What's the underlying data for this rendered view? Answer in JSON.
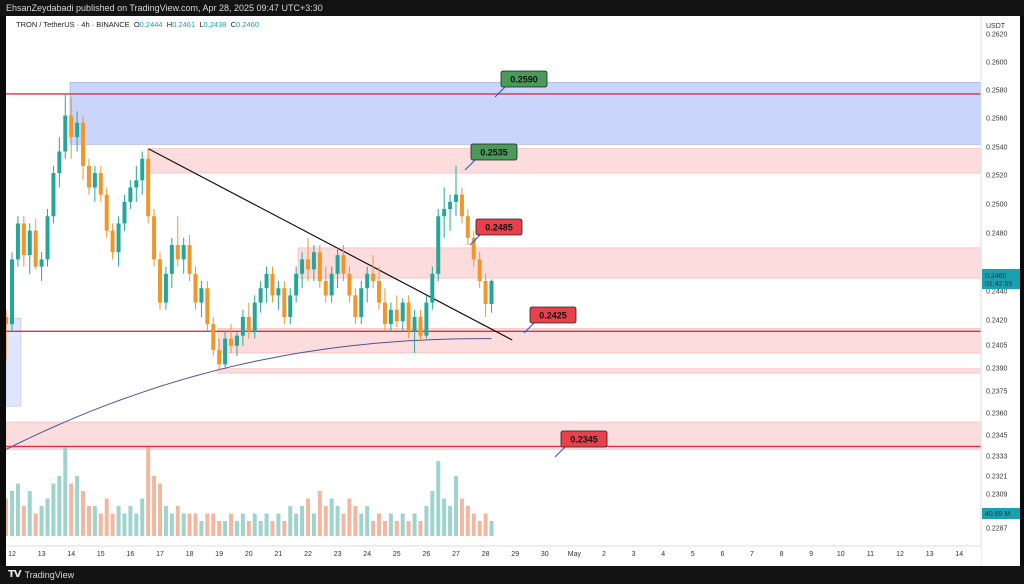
{
  "header": {
    "publisher_line": "EhsanZeydabadi published on TradingView.com, Apr 28, 2025 09:47 UTC+3:30"
  },
  "legend": {
    "symbol": "TRON / TetherUS · 4h · BINANCE",
    "o": "O",
    "o_val": "0.2444",
    "h": "H",
    "h_val": "0.2461",
    "l": "L",
    "l_val": "0.2438",
    "c": "C",
    "c_val": "0.2460"
  },
  "footer": {
    "brand": "TradingView"
  },
  "colors": {
    "bull": "#26a69a",
    "bear": "#f0962a",
    "red_line": "#e0303a",
    "green_label": "#4a9a5a",
    "red_label": "#e8414b",
    "supply_zone": "#c9d5fb",
    "pink_zone": "#fcdcdc",
    "ma": "#4b5591"
  },
  "chart_data": {
    "type": "candlestick",
    "symbol": "TRON / TetherUS",
    "timeframe": "4h",
    "exchange": "BINANCE",
    "y_axis_unit": "USDT",
    "ylim": [
      0.228,
      0.264
    ],
    "y_ticks": [
      "0.2620",
      "0.2600",
      "0.2580",
      "0.2560",
      "0.2540",
      "0.2520",
      "0.2500",
      "0.2480",
      "0.2460",
      "0.2440",
      "0.2420",
      "0.2405",
      "0.2390",
      "0.2375",
      "0.2360",
      "0.2345",
      "0.2333",
      "0.2321",
      "0.2309",
      "0.2298",
      "0.2287"
    ],
    "x_ticks": [
      "12",
      "13",
      "14",
      "15",
      "16",
      "17",
      "18",
      "19",
      "20",
      "21",
      "22",
      "23",
      "24",
      "25",
      "26",
      "27",
      "28",
      "29",
      "30",
      "May",
      "2",
      "3",
      "4",
      "5",
      "6",
      "7",
      "8",
      "9",
      "10",
      "11",
      "12",
      "13",
      "14"
    ],
    "current_price": "0.2460",
    "countdown": "01:42:59",
    "volume_tag": "40.69 M",
    "key_levels": [
      {
        "price": 0.259,
        "label": "0.2590",
        "color": "green"
      },
      {
        "price": 0.2535,
        "label": "0.2535",
        "color": "green"
      },
      {
        "price": 0.2485,
        "label": "0.2485",
        "color": "red"
      },
      {
        "price": 0.2425,
        "label": "0.2425",
        "color": "red"
      },
      {
        "price": 0.2345,
        "label": "0.2345",
        "color": "red"
      }
    ],
    "horizontal_lines": [
      0.259,
      0.2425,
      0.2345
    ],
    "zones": [
      {
        "from": 0.2555,
        "to": 0.2598,
        "kind": "supply"
      },
      {
        "from": 0.2535,
        "to": 0.2552,
        "kind": "pink"
      },
      {
        "from": 0.2462,
        "to": 0.2483,
        "kind": "pink"
      },
      {
        "from": 0.241,
        "to": 0.2427,
        "kind": "pink"
      },
      {
        "from": 0.2396,
        "to": 0.2399,
        "kind": "pink"
      },
      {
        "from": 0.2343,
        "to": 0.2362,
        "kind": "pink"
      }
    ],
    "trendline": {
      "from": [
        16.6,
        0.2552
      ],
      "to": [
        28.9,
        0.2419
      ]
    },
    "candles": [
      [
        11.8,
        0.2435,
        0.244,
        0.2405,
        0.243
      ],
      [
        12.0,
        0.243,
        0.248,
        0.2425,
        0.2475
      ],
      [
        12.2,
        0.2475,
        0.2505,
        0.247,
        0.25
      ],
      [
        12.4,
        0.25,
        0.2505,
        0.247,
        0.2478
      ],
      [
        12.6,
        0.2478,
        0.25,
        0.2465,
        0.2495
      ],
      [
        12.8,
        0.2495,
        0.2503,
        0.2468,
        0.247
      ],
      [
        13.0,
        0.247,
        0.248,
        0.246,
        0.2475
      ],
      [
        13.2,
        0.2475,
        0.251,
        0.247,
        0.2505
      ],
      [
        13.4,
        0.2505,
        0.254,
        0.25,
        0.2535
      ],
      [
        13.6,
        0.2535,
        0.256,
        0.2525,
        0.255
      ],
      [
        13.8,
        0.255,
        0.259,
        0.2545,
        0.2575
      ],
      [
        14.0,
        0.2575,
        0.2588,
        0.2545,
        0.256
      ],
      [
        14.2,
        0.256,
        0.2578,
        0.255,
        0.257
      ],
      [
        14.4,
        0.257,
        0.2575,
        0.253,
        0.254
      ],
      [
        14.6,
        0.254,
        0.2545,
        0.252,
        0.2525
      ],
      [
        14.8,
        0.2525,
        0.254,
        0.2515,
        0.2535
      ],
      [
        15.0,
        0.2535,
        0.254,
        0.2515,
        0.252
      ],
      [
        15.2,
        0.252,
        0.2525,
        0.249,
        0.2495
      ],
      [
        15.4,
        0.2495,
        0.25,
        0.2475,
        0.248
      ],
      [
        15.6,
        0.248,
        0.2505,
        0.247,
        0.25
      ],
      [
        15.8,
        0.25,
        0.252,
        0.2495,
        0.2515
      ],
      [
        16.0,
        0.2515,
        0.253,
        0.251,
        0.2525
      ],
      [
        16.2,
        0.2525,
        0.254,
        0.2515,
        0.253
      ],
      [
        16.4,
        0.253,
        0.255,
        0.252,
        0.2545
      ],
      [
        16.6,
        0.2545,
        0.2552,
        0.25,
        0.2505
      ],
      [
        16.8,
        0.2505,
        0.251,
        0.247,
        0.2475
      ],
      [
        17.0,
        0.2475,
        0.248,
        0.244,
        0.2445
      ],
      [
        17.2,
        0.2445,
        0.247,
        0.244,
        0.2465
      ],
      [
        17.4,
        0.2465,
        0.249,
        0.2455,
        0.2485
      ],
      [
        17.6,
        0.2485,
        0.2505,
        0.247,
        0.2475
      ],
      [
        17.8,
        0.2475,
        0.249,
        0.2465,
        0.2485
      ],
      [
        18.0,
        0.2485,
        0.2492,
        0.246,
        0.2465
      ],
      [
        18.2,
        0.2465,
        0.247,
        0.244,
        0.2445
      ],
      [
        18.4,
        0.2445,
        0.246,
        0.2435,
        0.2455
      ],
      [
        18.6,
        0.2455,
        0.246,
        0.2425,
        0.243
      ],
      [
        18.8,
        0.243,
        0.2435,
        0.2408,
        0.2412
      ],
      [
        19.0,
        0.2412,
        0.242,
        0.2398,
        0.2402
      ],
      [
        19.2,
        0.2402,
        0.2425,
        0.24,
        0.242
      ],
      [
        19.4,
        0.242,
        0.243,
        0.241,
        0.2415
      ],
      [
        19.6,
        0.2415,
        0.2425,
        0.2408,
        0.2422
      ],
      [
        19.8,
        0.2422,
        0.244,
        0.2415,
        0.2435
      ],
      [
        20.0,
        0.2435,
        0.2445,
        0.242,
        0.2425
      ],
      [
        20.2,
        0.2425,
        0.245,
        0.242,
        0.2445
      ],
      [
        20.4,
        0.2445,
        0.246,
        0.2438,
        0.2455
      ],
      [
        20.6,
        0.2455,
        0.247,
        0.2445,
        0.2465
      ],
      [
        20.8,
        0.2465,
        0.247,
        0.2445,
        0.245
      ],
      [
        21.0,
        0.245,
        0.246,
        0.244,
        0.2455
      ],
      [
        21.2,
        0.2455,
        0.246,
        0.243,
        0.2435
      ],
      [
        21.4,
        0.2435,
        0.2455,
        0.243,
        0.245
      ],
      [
        21.6,
        0.245,
        0.247,
        0.2445,
        0.2465
      ],
      [
        21.8,
        0.2465,
        0.248,
        0.2455,
        0.2475
      ],
      [
        22.0,
        0.2475,
        0.249,
        0.246,
        0.2468
      ],
      [
        22.2,
        0.2468,
        0.2485,
        0.246,
        0.248
      ],
      [
        22.4,
        0.248,
        0.2485,
        0.2455,
        0.246
      ],
      [
        22.6,
        0.246,
        0.247,
        0.2445,
        0.245
      ],
      [
        22.8,
        0.245,
        0.247,
        0.2445,
        0.2465
      ],
      [
        23.0,
        0.2465,
        0.2483,
        0.2455,
        0.2478
      ],
      [
        23.2,
        0.2478,
        0.2485,
        0.246,
        0.2465
      ],
      [
        23.4,
        0.2465,
        0.247,
        0.2445,
        0.245
      ],
      [
        23.6,
        0.245,
        0.2455,
        0.243,
        0.2435
      ],
      [
        23.8,
        0.2435,
        0.246,
        0.243,
        0.2455
      ],
      [
        24.0,
        0.2455,
        0.247,
        0.2445,
        0.2465
      ],
      [
        24.2,
        0.2465,
        0.2478,
        0.2455,
        0.246
      ],
      [
        24.4,
        0.246,
        0.247,
        0.244,
        0.2445
      ],
      [
        24.6,
        0.2445,
        0.2455,
        0.2425,
        0.243
      ],
      [
        24.8,
        0.243,
        0.2445,
        0.2425,
        0.244
      ],
      [
        25.0,
        0.244,
        0.245,
        0.2428,
        0.2432
      ],
      [
        25.2,
        0.2432,
        0.2448,
        0.2425,
        0.2445
      ],
      [
        25.4,
        0.2445,
        0.245,
        0.242,
        0.2425
      ],
      [
        25.6,
        0.2425,
        0.244,
        0.241,
        0.2435
      ],
      [
        25.8,
        0.2435,
        0.244,
        0.2418,
        0.2422
      ],
      [
        26.0,
        0.2422,
        0.245,
        0.242,
        0.2445
      ],
      [
        26.2,
        0.2445,
        0.247,
        0.244,
        0.2465
      ],
      [
        26.4,
        0.2465,
        0.251,
        0.246,
        0.2505
      ],
      [
        26.6,
        0.2505,
        0.2525,
        0.249,
        0.251
      ],
      [
        26.8,
        0.251,
        0.252,
        0.2495,
        0.2515
      ],
      [
        27.0,
        0.2515,
        0.254,
        0.2505,
        0.252
      ],
      [
        27.2,
        0.252,
        0.2525,
        0.25,
        0.2505
      ],
      [
        27.4,
        0.2505,
        0.251,
        0.2485,
        0.249
      ],
      [
        27.6,
        0.249,
        0.2495,
        0.247,
        0.2475
      ],
      [
        27.8,
        0.2475,
        0.248,
        0.2455,
        0.246
      ],
      [
        28.0,
        0.246,
        0.2465,
        0.2435,
        0.2444
      ],
      [
        28.2,
        0.2444,
        0.2461,
        0.2438,
        0.246
      ]
    ],
    "volumes": [
      [
        11.8,
        5
      ],
      [
        12.0,
        6
      ],
      [
        12.2,
        7
      ],
      [
        12.4,
        4
      ],
      [
        12.6,
        6
      ],
      [
        12.8,
        3
      ],
      [
        13.0,
        4
      ],
      [
        13.2,
        5
      ],
      [
        13.4,
        7
      ],
      [
        13.6,
        8
      ],
      [
        13.8,
        12
      ],
      [
        14.0,
        7
      ],
      [
        14.2,
        8
      ],
      [
        14.4,
        6
      ],
      [
        14.6,
        4
      ],
      [
        14.8,
        4
      ],
      [
        15.0,
        3
      ],
      [
        15.2,
        5
      ],
      [
        15.4,
        3
      ],
      [
        15.6,
        4
      ],
      [
        15.8,
        3
      ],
      [
        16.0,
        4
      ],
      [
        16.2,
        3
      ],
      [
        16.4,
        5
      ],
      [
        16.6,
        12
      ],
      [
        16.8,
        8
      ],
      [
        17.0,
        7
      ],
      [
        17.2,
        4
      ],
      [
        17.4,
        3
      ],
      [
        17.6,
        4
      ],
      [
        17.8,
        3
      ],
      [
        18.0,
        3
      ],
      [
        18.2,
        3
      ],
      [
        18.4,
        2
      ],
      [
        18.6,
        3
      ],
      [
        18.8,
        3
      ],
      [
        19.0,
        2
      ],
      [
        19.2,
        2
      ],
      [
        19.4,
        3
      ],
      [
        19.6,
        2
      ],
      [
        19.8,
        3
      ],
      [
        20.0,
        2
      ],
      [
        20.2,
        3
      ],
      [
        20.4,
        2
      ],
      [
        20.6,
        3
      ],
      [
        20.8,
        2
      ],
      [
        21.0,
        3
      ],
      [
        21.2,
        2
      ],
      [
        21.4,
        4
      ],
      [
        21.6,
        3
      ],
      [
        21.8,
        4
      ],
      [
        22.0,
        5
      ],
      [
        22.2,
        3
      ],
      [
        22.4,
        6
      ],
      [
        22.6,
        4
      ],
      [
        22.8,
        5
      ],
      [
        23.0,
        4
      ],
      [
        23.2,
        3
      ],
      [
        23.4,
        5
      ],
      [
        23.6,
        4
      ],
      [
        23.8,
        3
      ],
      [
        24.0,
        4
      ],
      [
        24.2,
        2
      ],
      [
        24.4,
        3
      ],
      [
        24.6,
        2
      ],
      [
        24.8,
        3
      ],
      [
        25.0,
        2
      ],
      [
        25.2,
        3
      ],
      [
        25.4,
        2
      ],
      [
        25.6,
        3
      ],
      [
        25.8,
        2
      ],
      [
        26.0,
        4
      ],
      [
        26.2,
        6
      ],
      [
        26.4,
        10
      ],
      [
        26.6,
        5
      ],
      [
        26.8,
        4
      ],
      [
        27.0,
        8
      ],
      [
        27.2,
        5
      ],
      [
        27.4,
        4
      ],
      [
        27.6,
        3
      ],
      [
        27.8,
        2
      ],
      [
        28.0,
        3
      ],
      [
        28.2,
        2
      ]
    ]
  }
}
